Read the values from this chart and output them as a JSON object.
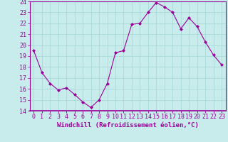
{
  "x": [
    0,
    1,
    2,
    3,
    4,
    5,
    6,
    7,
    8,
    9,
    10,
    11,
    12,
    13,
    14,
    15,
    16,
    17,
    18,
    19,
    20,
    21,
    22,
    23
  ],
  "y": [
    19.5,
    17.5,
    16.5,
    15.9,
    16.1,
    15.5,
    14.8,
    14.3,
    15.0,
    16.5,
    19.3,
    19.5,
    21.9,
    22.0,
    23.0,
    23.9,
    23.5,
    23.0,
    21.5,
    22.5,
    21.7,
    20.3,
    19.1,
    18.2
  ],
  "line_color": "#990099",
  "marker": "D",
  "marker_size": 2,
  "bg_color": "#c8ecec",
  "grid_color": "#aad8d8",
  "xlabel": "Windchill (Refroidissement éolien,°C)",
  "ylim": [
    14,
    24
  ],
  "xlim": [
    -0.5,
    23.5
  ],
  "yticks": [
    14,
    15,
    16,
    17,
    18,
    19,
    20,
    21,
    22,
    23,
    24
  ],
  "xticks": [
    0,
    1,
    2,
    3,
    4,
    5,
    6,
    7,
    8,
    9,
    10,
    11,
    12,
    13,
    14,
    15,
    16,
    17,
    18,
    19,
    20,
    21,
    22,
    23
  ],
  "spine_color": "#990099",
  "tick_color": "#990099",
  "label_color": "#990099",
  "label_fontsize": 6.5,
  "tick_fontsize": 6
}
